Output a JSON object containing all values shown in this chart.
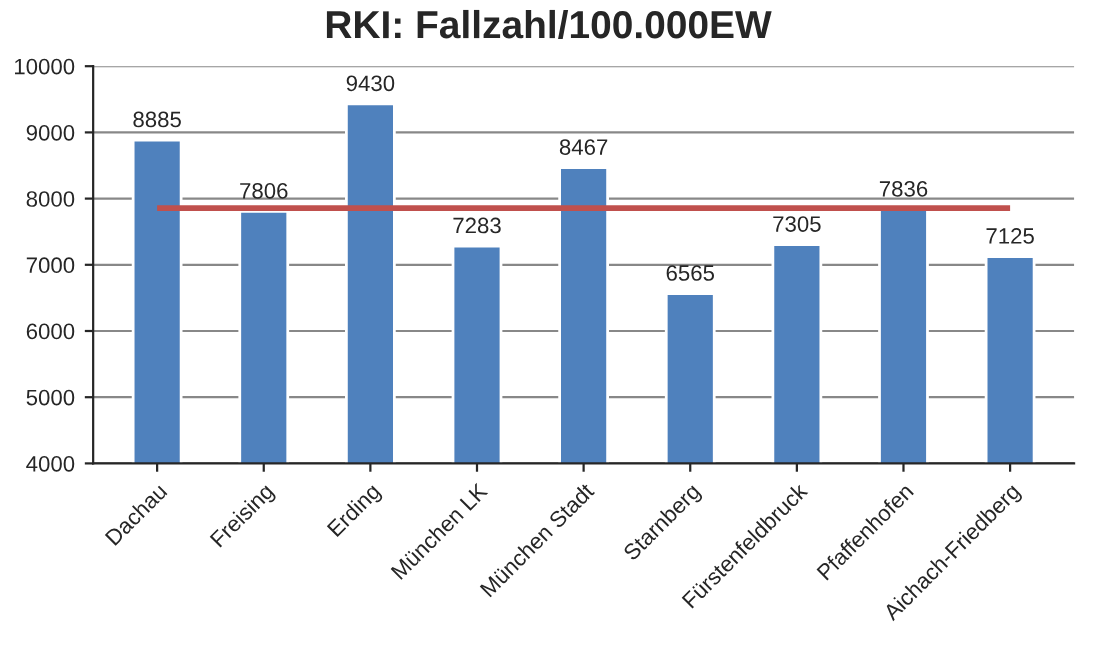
{
  "chart_data": {
    "type": "bar",
    "title": "RKI: Fallzahl/100.000EW",
    "categories": [
      "Dachau",
      "Freising",
      "Erding",
      "München LK",
      "München Stadt",
      "Starnberg",
      "Fürstenfeldbruck",
      "Pfaffenhofen",
      "Aichach-Friedberg"
    ],
    "values": [
      8885,
      7806,
      9430,
      7283,
      8467,
      6565,
      7305,
      7836,
      7125
    ],
    "color": "#4f81bd",
    "ylim": [
      4000,
      10000
    ],
    "yticks": [
      4000,
      5000,
      6000,
      7000,
      8000,
      9000,
      10000
    ],
    "grid": "y",
    "data_labels": true,
    "ref_lines": [
      {
        "axis": "y",
        "value": 7856,
        "color": "#c0504d"
      }
    ]
  }
}
